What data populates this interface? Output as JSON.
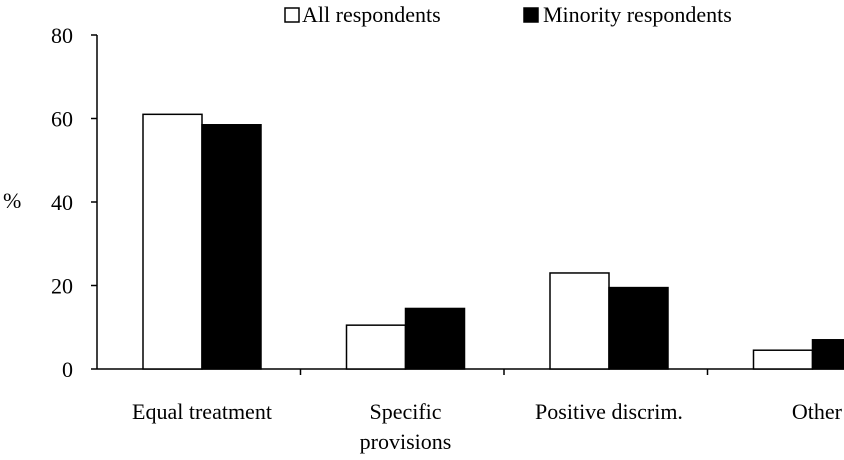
{
  "chart_data": {
    "type": "bar",
    "categories": [
      [
        "Equal treatment"
      ],
      [
        "Specific",
        "provisions"
      ],
      [
        "Positive discrim."
      ],
      [
        "Other"
      ]
    ],
    "series": [
      {
        "name": "All respondents",
        "values": [
          61,
          10.5,
          23,
          4.5
        ],
        "color": "#ffffff"
      },
      {
        "name": "Minority respondents",
        "values": [
          58.5,
          14.5,
          19.5,
          7
        ],
        "color": "#000000"
      }
    ],
    "ylabel": "%",
    "xlabel": "",
    "ylim": [
      0,
      80
    ],
    "yticks": [
      "0",
      "20",
      "40",
      "60",
      "80"
    ],
    "grid": false,
    "legend_position": "top-right"
  }
}
